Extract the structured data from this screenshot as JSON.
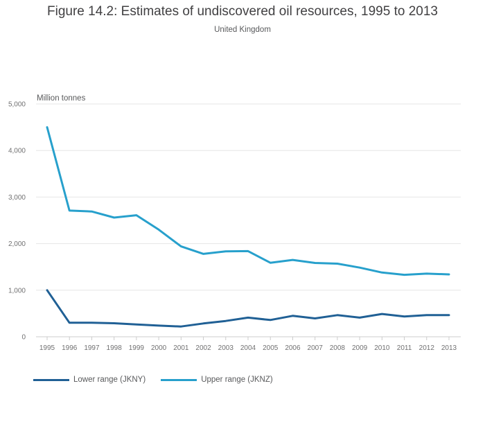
{
  "title": "Figure 14.2: Estimates of undiscovered oil resources, 1995 to 2013",
  "subtitle": "United Kingdom",
  "colors": {
    "lower": "#206095",
    "upper": "#27a0cc",
    "grid": "#e6e6e6",
    "axis": "#cccccc"
  },
  "chart_data": {
    "type": "line",
    "title": "Figure 14.2: Estimates of undiscovered oil resources, 1995 to 2013",
    "subtitle": "United Kingdom",
    "ylabel": "Million tonnes",
    "xlabel": "",
    "ylim": [
      0,
      5000
    ],
    "yticks": [
      0,
      1000,
      2000,
      3000,
      4000,
      5000
    ],
    "ytick_labels": [
      "0",
      "1,000",
      "2,000",
      "3,000",
      "4,000",
      "5,000"
    ],
    "grid": true,
    "legend_position": "bottom-left",
    "x": [
      "1995",
      "1996",
      "1997",
      "1998",
      "1999",
      "2000",
      "2001",
      "2002",
      "2003",
      "2004",
      "2005",
      "2006",
      "2007",
      "2008",
      "2009",
      "2010",
      "2011",
      "2012",
      "2013"
    ],
    "series": [
      {
        "name": "Lower range (JKNY)",
        "color": "#206095",
        "values": [
          1000,
          300,
          300,
          290,
          265,
          240,
          220,
          285,
          340,
          410,
          360,
          450,
          395,
          465,
          410,
          490,
          435,
          465,
          465
        ]
      },
      {
        "name": "Upper range (JKNZ)",
        "color": "#27a0cc",
        "values": [
          4500,
          2710,
          2690,
          2560,
          2610,
          2300,
          1940,
          1780,
          1835,
          1840,
          1590,
          1650,
          1585,
          1570,
          1485,
          1380,
          1330,
          1355,
          1340
        ]
      }
    ]
  }
}
